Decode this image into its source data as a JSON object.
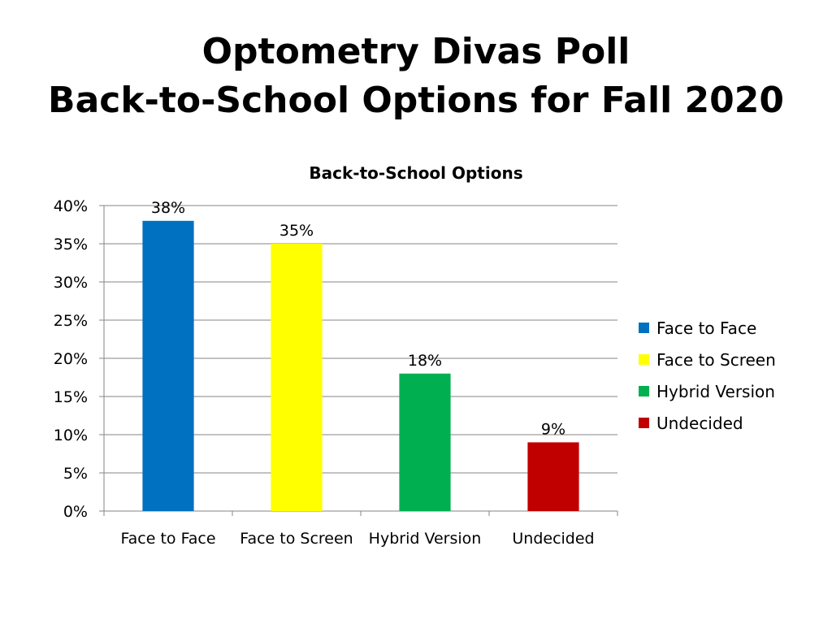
{
  "slide": {
    "title_line1": "Optometry Divas Poll",
    "title_line2": "Back-to-School Options for Fall 2020"
  },
  "chart_data": {
    "type": "bar",
    "title": "Back-to-School Options",
    "categories": [
      "Face to Face",
      "Face to Screen",
      "Hybrid Version",
      "Undecided"
    ],
    "values": [
      38,
      35,
      18,
      9
    ],
    "value_labels": [
      "38%",
      "35%",
      "18%",
      "9%"
    ],
    "colors": [
      "#0070C0",
      "#FFFF00",
      "#00B050",
      "#C00000"
    ],
    "ylim": [
      0,
      40
    ],
    "yticks": [
      0,
      5,
      10,
      15,
      20,
      25,
      30,
      35,
      40
    ],
    "ytick_labels": [
      "0%",
      "5%",
      "10%",
      "15%",
      "20%",
      "25%",
      "30%",
      "35%",
      "40%"
    ],
    "xlabel": "",
    "ylabel": "",
    "grid": true,
    "legend_position": "right",
    "legend": [
      "Face to Face",
      "Face to Screen",
      "Hybrid Version",
      "Undecided"
    ]
  }
}
